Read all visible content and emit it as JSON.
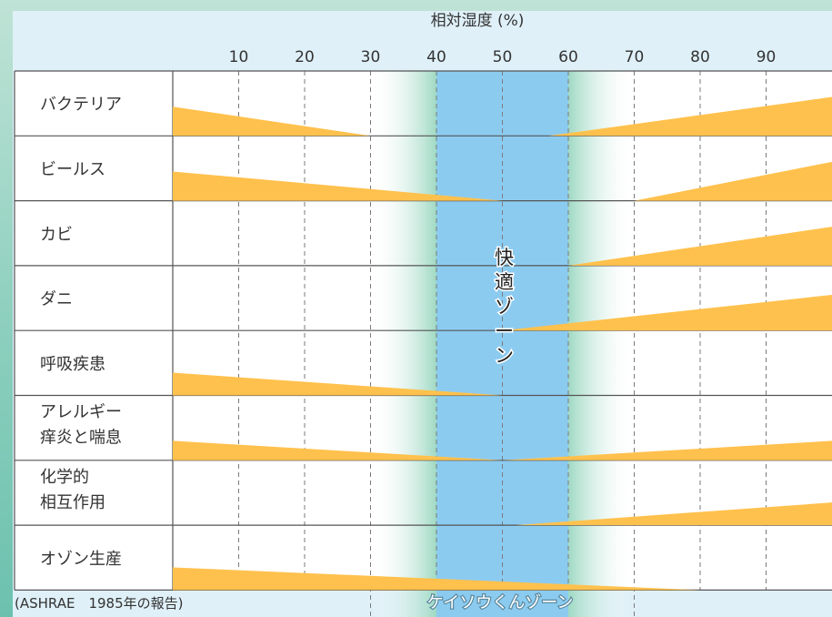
{
  "chart_data": {
    "type": "area",
    "title": "相対湿度 (%)",
    "x_ticks": [
      10,
      20,
      30,
      40,
      50,
      60,
      70,
      80,
      90
    ],
    "xlim": [
      0,
      100
    ],
    "comfort_zone": {
      "label": "快適ゾーン",
      "from": 40,
      "to": 60
    },
    "keisou_zone": {
      "label": "ケイソウくんゾーン",
      "from": 30,
      "to": 70
    },
    "source_note": "(ASHRAE　1985年の報告)",
    "rows": [
      {
        "label": "バクテリア",
        "left": {
          "start_h": 0.45,
          "end_x": 30
        },
        "right": {
          "start_x": 57,
          "end_h": 0.6
        }
      },
      {
        "label": "ビールス",
        "left": {
          "start_h": 0.45,
          "end_x": 50
        },
        "right": {
          "start_x": 70,
          "end_h": 0.6
        }
      },
      {
        "label": "カビ",
        "left": null,
        "right": {
          "start_x": 60,
          "end_h": 0.6
        }
      },
      {
        "label": "ダニ",
        "left": null,
        "right": {
          "start_x": 50,
          "end_h": 0.55
        }
      },
      {
        "label": "呼吸疾患",
        "left": {
          "start_h": 0.35,
          "end_x": 50
        },
        "right": null
      },
      {
        "label": "アレルギー\n痒炎と喘息",
        "left": {
          "start_h": 0.3,
          "end_x": 50
        },
        "right": {
          "start_x": 50,
          "end_h": 0.3
        }
      },
      {
        "label": "化学的\n相互作用",
        "left": null,
        "right": {
          "start_x": 52,
          "end_h": 0.35
        }
      },
      {
        "label": "オゾン生産",
        "left": {
          "start_h": 0.35,
          "end_x": 80
        },
        "right": null
      }
    ]
  },
  "colors": {
    "risk": "#ffc14d",
    "comfort": "#8ccbf0",
    "zone_edge": "#9fd9c4",
    "grid": "#7a7a7a",
    "border": "#555555"
  }
}
